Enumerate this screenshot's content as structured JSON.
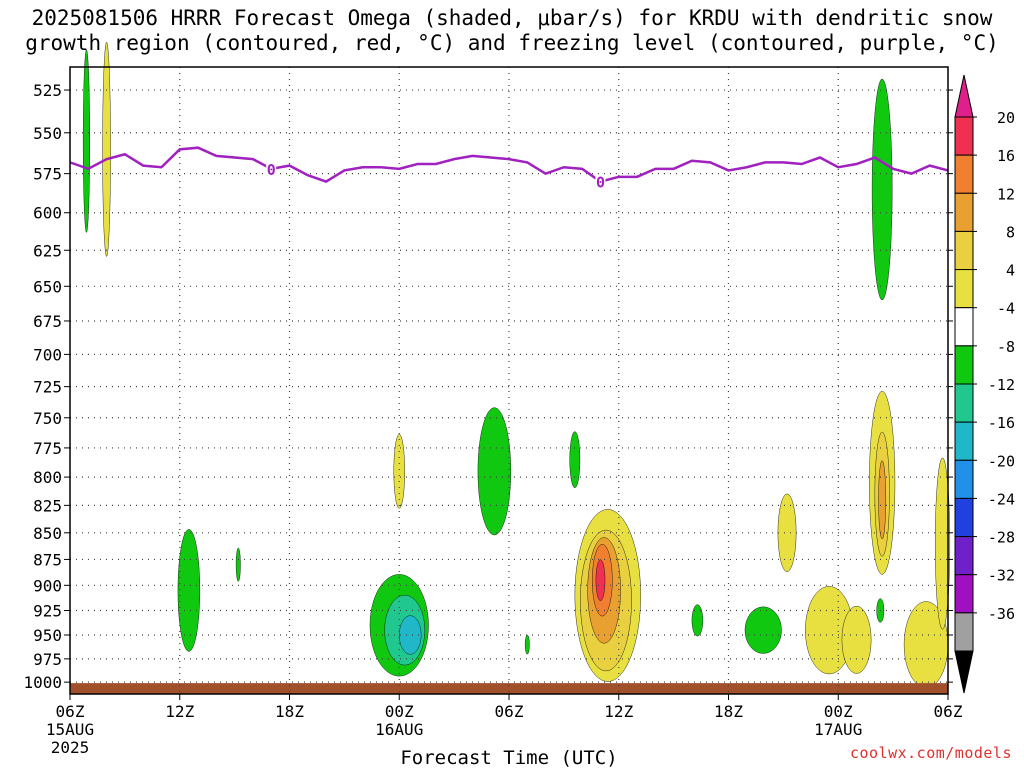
{
  "page": {
    "title_line1": "2025081506 HRRR Forecast Omega (shaded, μbar/s) for KRDU with dendritic snow",
    "title_line2": "growth region (contoured, red, °C) and freezing level (contoured, purple, °C)",
    "watermark": "coolwx.com/models"
  },
  "chart_data": {
    "type": "heatmap",
    "title": "2025081506 HRRR Forecast Omega (shaded, μbar/s) for KRDU with dendritic snow growth region (contoured, red, °C) and freezing level (contoured, purple, °C)",
    "xlabel": "Forecast Time (UTC)",
    "ylabel": "",
    "xlim_hours": [
      0,
      48
    ],
    "ylim": [
      1013,
      512
    ],
    "y_scale": "log-pressure (inverted)",
    "grid": true,
    "x_ticks": [
      {
        "h": 0,
        "label": "06Z",
        "sub": "15AUG",
        "sub2": "2025"
      },
      {
        "h": 6,
        "label": "12Z"
      },
      {
        "h": 12,
        "label": "18Z"
      },
      {
        "h": 18,
        "label": "00Z",
        "sub": "16AUG"
      },
      {
        "h": 24,
        "label": "06Z"
      },
      {
        "h": 30,
        "label": "12Z"
      },
      {
        "h": 36,
        "label": "18Z"
      },
      {
        "h": 42,
        "label": "00Z",
        "sub": "17AUG"
      },
      {
        "h": 48,
        "label": "06Z"
      }
    ],
    "y_ticks": [
      525,
      550,
      575,
      600,
      625,
      650,
      675,
      700,
      725,
      750,
      775,
      800,
      825,
      850,
      875,
      900,
      925,
      950,
      975,
      1000
    ],
    "colorbar": {
      "labels": [
        "20",
        "16",
        "12",
        "8",
        "4",
        "-4",
        "-8",
        "-12",
        "-16",
        "-20",
        "-24",
        "-28",
        "-32",
        "-36"
      ],
      "colors": [
        "#f03050",
        "#f08030",
        "#e8a030",
        "#e8d040",
        "#e8e040",
        "#ffffff",
        "#10c810",
        "#20c890",
        "#20b8c8",
        "#2090e8",
        "#2040e0",
        "#7020c8",
        "#a010c0",
        "#a0a0a0"
      ],
      "top_arrow_color": "#e0208a",
      "bottom_arrow_color": "#000000"
    },
    "freezing_level": {
      "label": "0",
      "color": "#a020c0",
      "hours": [
        0,
        1,
        2,
        3,
        4,
        5,
        6,
        7,
        8,
        9,
        10,
        11,
        12,
        13,
        14,
        15,
        16,
        17,
        18,
        19,
        20,
        21,
        22,
        23,
        24,
        25,
        26,
        27,
        28,
        29,
        30,
        31,
        32,
        33,
        34,
        35,
        36,
        37,
        38,
        39,
        40,
        41,
        42,
        43,
        44,
        45,
        46,
        47,
        48
      ],
      "pressure": [
        568,
        572,
        566,
        563,
        570,
        571,
        560,
        559,
        564,
        565,
        566,
        572,
        570,
        576,
        580,
        573,
        571,
        571,
        572,
        569,
        569,
        566,
        564,
        565,
        566,
        568,
        575,
        571,
        572,
        580,
        577,
        577,
        572,
        572,
        567,
        568,
        573,
        571,
        568,
        568,
        569,
        565,
        571,
        569,
        565,
        572,
        575,
        570,
        573
      ]
    },
    "surface_band": {
      "color": "#a0502a",
      "pressure": [
        1000,
        1013
      ]
    },
    "omega_regions": [
      {
        "level": "-4",
        "color": "#10c810",
        "h": 0.9,
        "p": 555,
        "dh": 0.18,
        "dp": 55
      },
      {
        "level": "4",
        "color": "#e8e040",
        "h": 2.0,
        "p": 560,
        "dh": 0.22,
        "dp": 65
      },
      {
        "level": "-4",
        "color": "#10c810",
        "h": 6.5,
        "p": 905,
        "dh": 0.6,
        "dp": 60
      },
      {
        "level": "-4",
        "color": "#10c810",
        "h": 9.2,
        "p": 880,
        "dh": 0.12,
        "dp": 16
      },
      {
        "level": "-4",
        "color": "#10c810",
        "h": 18.0,
        "p": 940,
        "dh": 1.6,
        "dp": 52
      },
      {
        "level": "-8",
        "color": "#20c890",
        "h": 18.3,
        "p": 945,
        "dh": 1.1,
        "dp": 36
      },
      {
        "level": "-12",
        "color": "#20b8c8",
        "h": 18.6,
        "p": 950,
        "dh": 0.6,
        "dp": 20
      },
      {
        "level": "4",
        "color": "#e8e040",
        "h": 18.0,
        "p": 795,
        "dh": 0.3,
        "dp": 32
      },
      {
        "level": "-4",
        "color": "#10c810",
        "h": 23.2,
        "p": 795,
        "dh": 0.9,
        "dp": 55
      },
      {
        "level": "-4",
        "color": "#10c810",
        "h": 25.0,
        "p": 960,
        "dh": 0.12,
        "dp": 10
      },
      {
        "level": "-4",
        "color": "#10c810",
        "h": 27.6,
        "p": 785,
        "dh": 0.28,
        "dp": 24
      },
      {
        "level": "4",
        "color": "#e8e040",
        "h": 29.4,
        "p": 910,
        "dh": 1.8,
        "dp": 85
      },
      {
        "level": "8",
        "color": "#e8d040",
        "h": 29.3,
        "p": 915,
        "dh": 1.4,
        "dp": 70
      },
      {
        "level": "12",
        "color": "#e8a030",
        "h": 29.2,
        "p": 905,
        "dh": 0.9,
        "dp": 52
      },
      {
        "level": "16",
        "color": "#f08030",
        "h": 29.1,
        "p": 895,
        "dh": 0.55,
        "dp": 35
      },
      {
        "level": "20",
        "color": "#f03050",
        "h": 29.0,
        "p": 895,
        "dh": 0.25,
        "dp": 20
      },
      {
        "level": "-4",
        "color": "#10c810",
        "h": 34.3,
        "p": 935,
        "dh": 0.3,
        "dp": 16
      },
      {
        "level": "-4",
        "color": "#10c810",
        "h": 37.9,
        "p": 945,
        "dh": 1.0,
        "dp": 24
      },
      {
        "level": "4",
        "color": "#e8e040",
        "h": 39.2,
        "p": 850,
        "dh": 0.5,
        "dp": 36
      },
      {
        "level": "4",
        "color": "#e8e040",
        "h": 41.5,
        "p": 945,
        "dh": 1.3,
        "dp": 45
      },
      {
        "level": "4",
        "color": "#e8e040",
        "h": 43.0,
        "p": 955,
        "dh": 0.8,
        "dp": 35
      },
      {
        "level": "-4",
        "color": "#10c810",
        "h": 44.4,
        "p": 585,
        "dh": 0.55,
        "dp": 70
      },
      {
        "level": "4",
        "color": "#e8e040",
        "h": 44.4,
        "p": 805,
        "dh": 0.7,
        "dp": 80
      },
      {
        "level": "8",
        "color": "#e8d040",
        "h": 44.4,
        "p": 815,
        "dh": 0.4,
        "dp": 55
      },
      {
        "level": "12",
        "color": "#e8a030",
        "h": 44.4,
        "p": 820,
        "dh": 0.2,
        "dp": 35
      },
      {
        "level": "-4",
        "color": "#10c810",
        "h": 44.3,
        "p": 925,
        "dh": 0.2,
        "dp": 12
      },
      {
        "level": "4",
        "color": "#e8e040",
        "h": 46.8,
        "p": 960,
        "dh": 1.2,
        "dp": 45
      },
      {
        "level": "4",
        "color": "#e8e040",
        "h": 47.7,
        "p": 860,
        "dh": 0.4,
        "dp": 80
      }
    ]
  }
}
